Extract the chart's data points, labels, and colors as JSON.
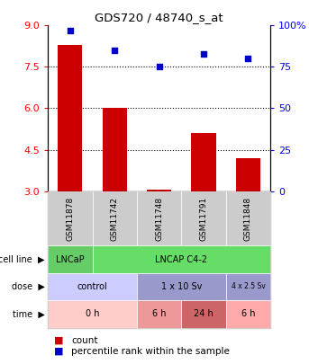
{
  "title": "GDS720 / 48740_s_at",
  "samples": [
    "GSM11878",
    "GSM11742",
    "GSM11748",
    "GSM11791",
    "GSM11848"
  ],
  "bar_values": [
    8.3,
    6.0,
    3.05,
    5.1,
    4.2
  ],
  "bar_baseline": 3.0,
  "percentile_values": [
    97,
    85,
    75,
    83,
    80
  ],
  "bar_color": "#cc0000",
  "dot_color": "#0000cc",
  "ylim_left": [
    3,
    9
  ],
  "ylim_right": [
    0,
    100
  ],
  "yticks_left": [
    3,
    4.5,
    6,
    7.5,
    9
  ],
  "yticks_right": [
    0,
    25,
    50,
    75,
    100
  ],
  "hlines": [
    7.5,
    6.0,
    4.5
  ],
  "sample_box_color": "#cccccc",
  "cell_line_data": [
    [
      0,
      1,
      "LNCaP",
      "#66cc66"
    ],
    [
      1,
      5,
      "LNCAP C4-2",
      "#66dd66"
    ]
  ],
  "dose_data": [
    [
      0,
      2,
      "control",
      "#ccccff"
    ],
    [
      2,
      4,
      "1 x 10 Sv",
      "#9999cc"
    ],
    [
      4,
      5,
      "4 x 2.5 Sv",
      "#9999cc"
    ]
  ],
  "time_data": [
    [
      0,
      2,
      "0 h",
      "#ffcccc"
    ],
    [
      2,
      3,
      "6 h",
      "#ee9999"
    ],
    [
      3,
      4,
      "24 h",
      "#cc6666"
    ],
    [
      4,
      5,
      "6 h",
      "#ffaaaa"
    ]
  ],
  "legend_count_color": "#cc0000",
  "legend_pct_color": "#0000cc",
  "dose_font_sizes": [
    7,
    7,
    5.5
  ],
  "time_font_sizes": [
    7,
    7,
    7,
    7
  ]
}
